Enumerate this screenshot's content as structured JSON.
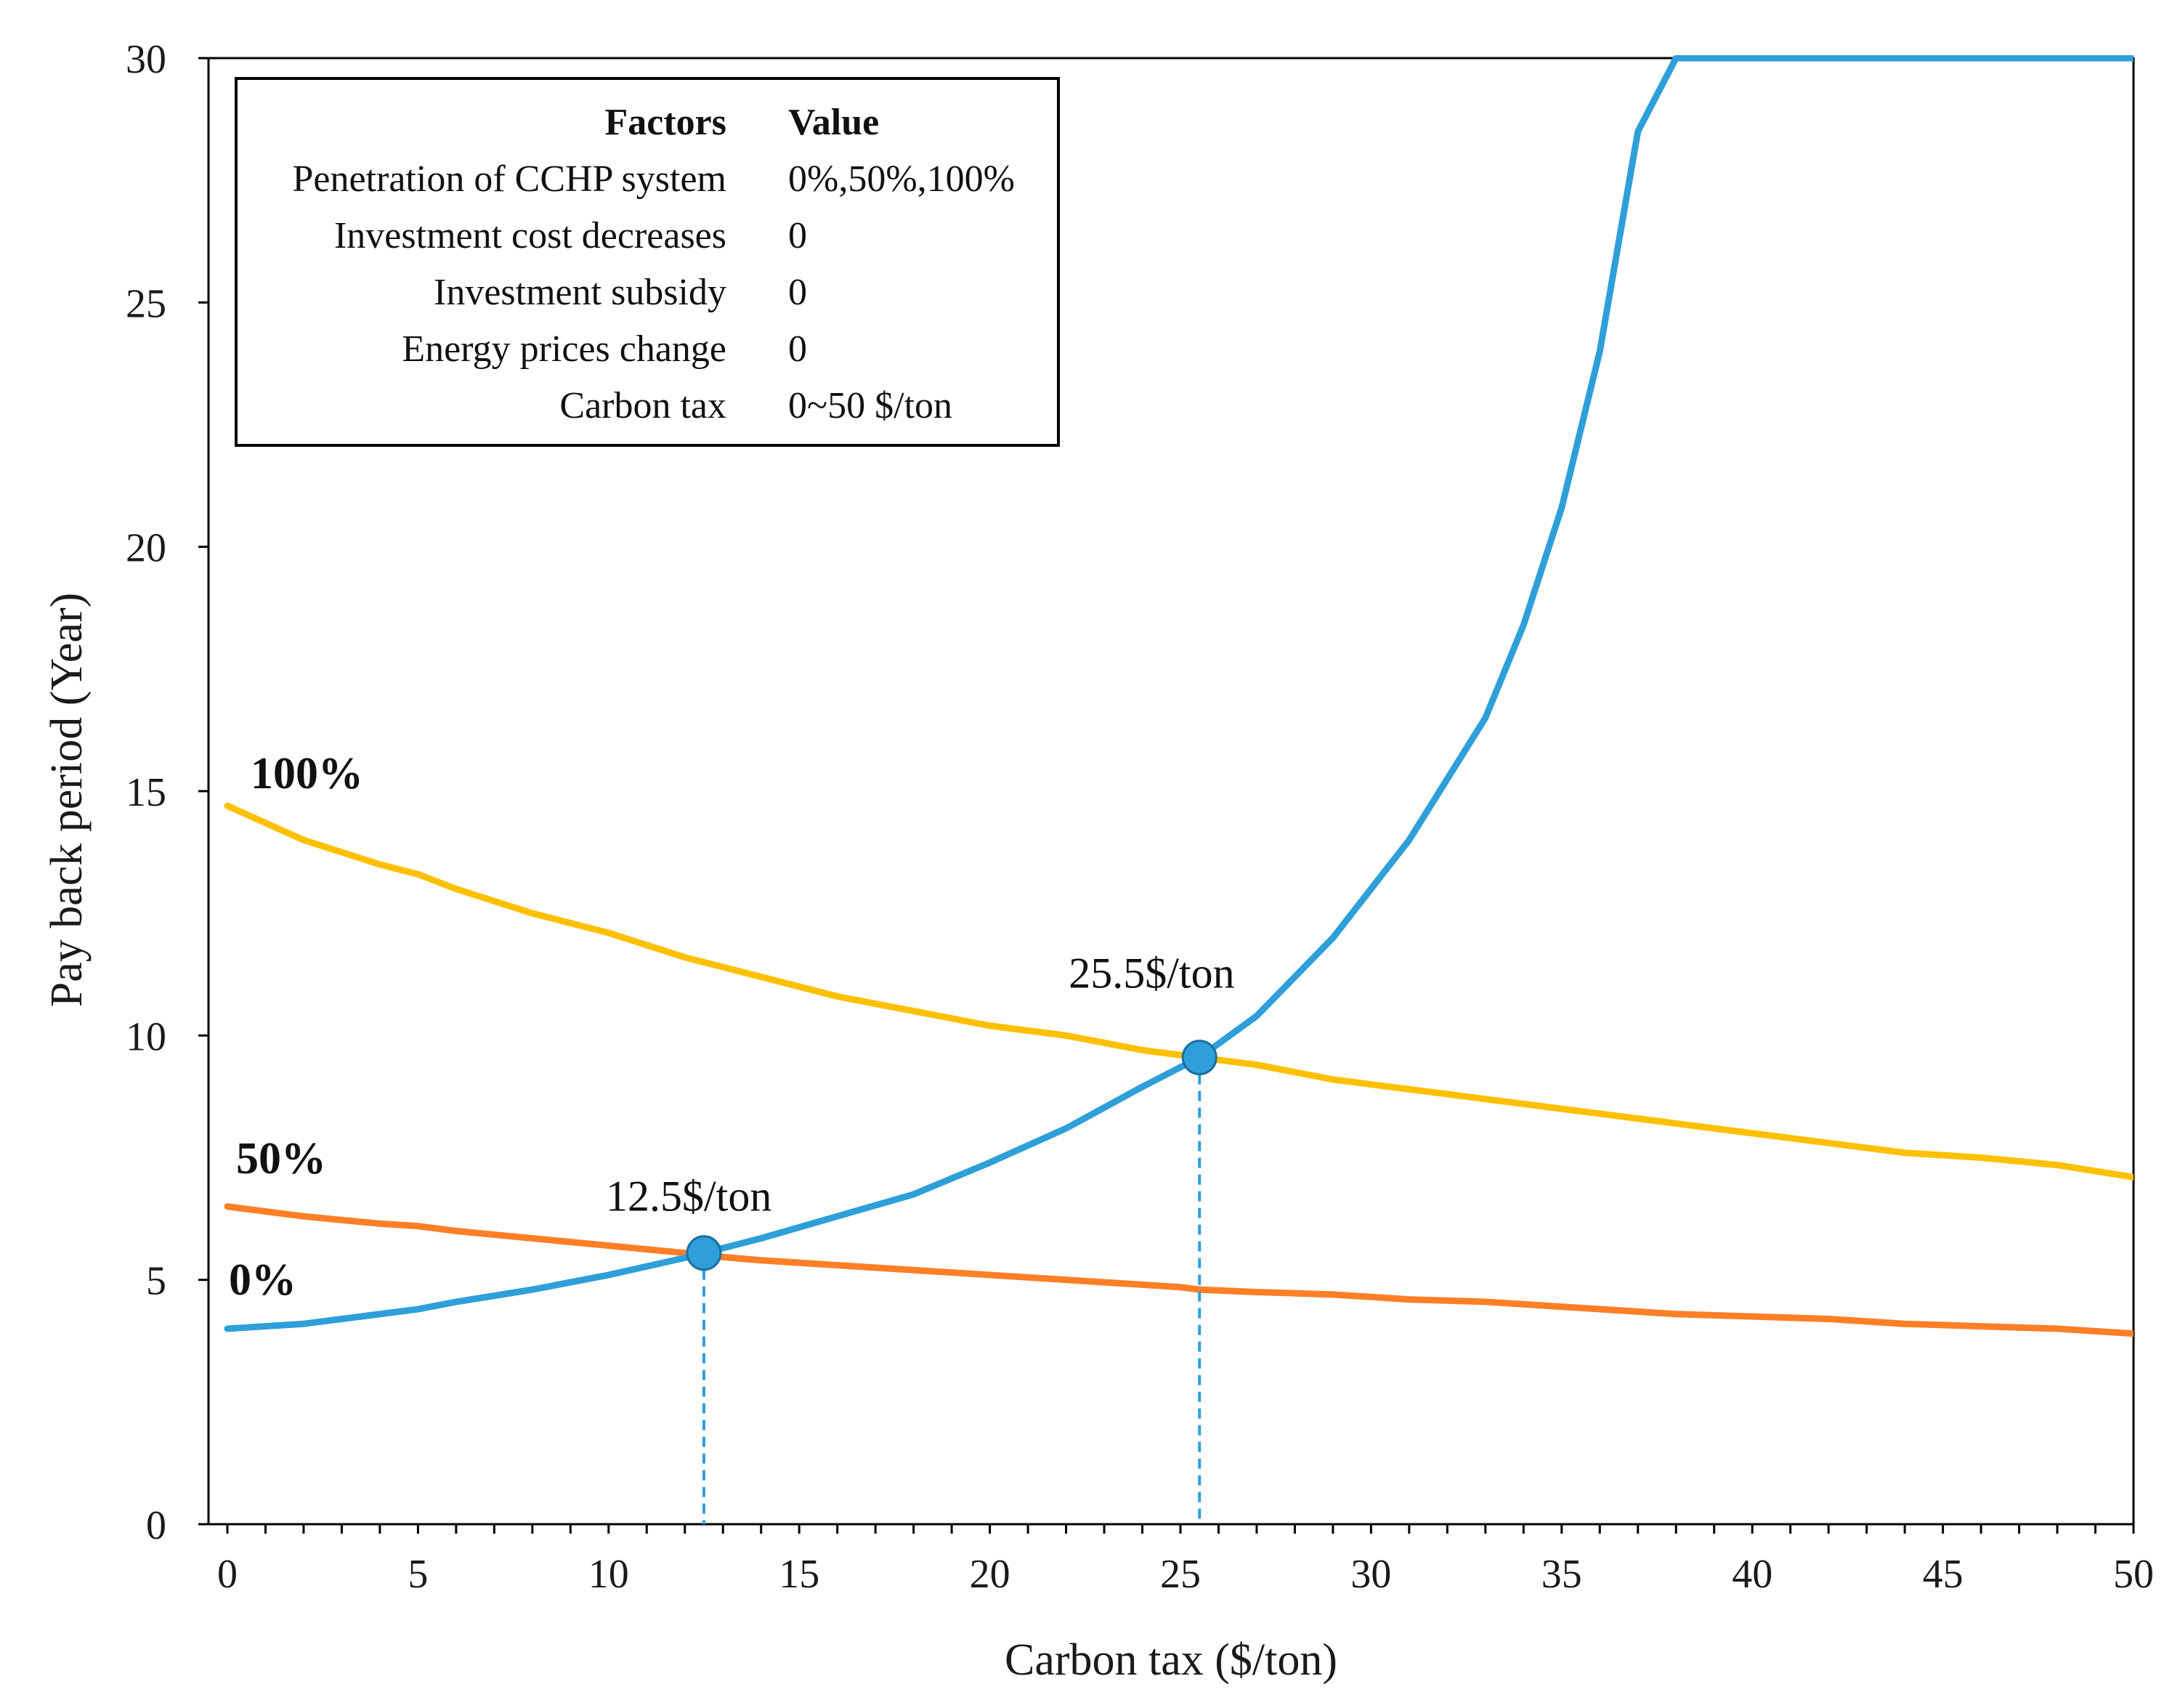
{
  "chart_data": {
    "type": "line",
    "title": "",
    "xlabel": "Carbon tax ($/ton)",
    "ylabel": "Pay back period (Year)",
    "xlim": [
      0,
      50
    ],
    "ylim": [
      0,
      30
    ],
    "x_ticks": [
      "0",
      "5",
      "10",
      "15",
      "20",
      "25",
      "30",
      "35",
      "40",
      "45",
      "50"
    ],
    "y_ticks": [
      "0",
      "5",
      "10",
      "15",
      "20",
      "25",
      "30"
    ],
    "grid": false,
    "x": [
      0,
      2,
      4,
      5,
      6,
      8,
      10,
      12,
      12.5,
      14,
      16,
      18,
      20,
      22,
      24,
      25,
      25.5,
      27,
      29,
      31,
      33,
      34,
      35,
      36,
      37,
      38,
      40,
      42,
      44,
      46,
      48,
      50
    ],
    "series": [
      {
        "name": "100%",
        "color": "#ffc000",
        "values": [
          14.7,
          14.0,
          13.5,
          13.3,
          13.0,
          12.5,
          12.1,
          11.6,
          11.5,
          11.2,
          10.8,
          10.5,
          10.2,
          10.0,
          9.7,
          9.6,
          9.55,
          9.4,
          9.1,
          8.9,
          8.7,
          8.6,
          8.5,
          8.4,
          8.3,
          8.2,
          8.0,
          7.8,
          7.6,
          7.5,
          7.35,
          7.1
        ]
      },
      {
        "name": "50%",
        "color": "#ff7f27",
        "values": [
          6.5,
          6.3,
          6.15,
          6.1,
          6.0,
          5.85,
          5.7,
          5.55,
          5.5,
          5.4,
          5.3,
          5.2,
          5.1,
          5.0,
          4.9,
          4.85,
          4.8,
          4.75,
          4.7,
          4.6,
          4.55,
          4.5,
          4.45,
          4.4,
          4.35,
          4.3,
          4.25,
          4.2,
          4.1,
          4.05,
          4.0,
          3.9
        ]
      },
      {
        "name": "0%",
        "color": "#2e9fd9",
        "values": [
          4.0,
          4.1,
          4.3,
          4.4,
          4.55,
          4.8,
          5.1,
          5.45,
          5.55,
          5.85,
          6.3,
          6.75,
          7.4,
          8.1,
          8.95,
          9.35,
          9.55,
          10.4,
          12.0,
          14.0,
          16.5,
          18.4,
          20.8,
          24.0,
          28.5,
          30,
          30,
          30,
          30,
          30,
          30,
          30
        ]
      }
    ],
    "series_labels": [
      "100%",
      "50%",
      "0%"
    ],
    "intersections": [
      {
        "x": 12.5,
        "y": 5.55,
        "label": "12.5$/ton"
      },
      {
        "x": 25.5,
        "y": 9.55,
        "label": "25.5$/ton"
      }
    ],
    "legend_table": {
      "header": {
        "factor": "Factors",
        "value": "Value"
      },
      "rows": [
        {
          "factor": "Penetration of CCHP system",
          "value": "0%,50%,100%"
        },
        {
          "factor": "Investment cost decreases",
          "value": "0"
        },
        {
          "factor": "Investment subsidy",
          "value": "0"
        },
        {
          "factor": "Energy prices change",
          "value": "0"
        },
        {
          "factor": "Carbon tax",
          "value": "0~50 $/ton"
        }
      ]
    }
  }
}
